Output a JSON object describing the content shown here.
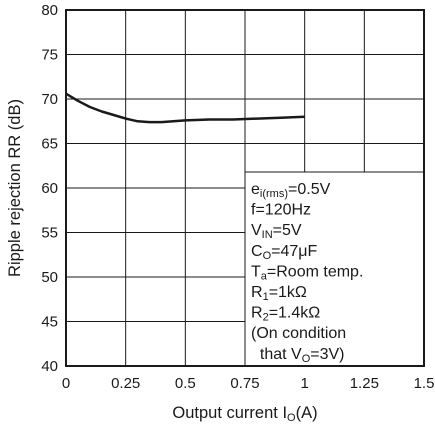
{
  "chart_data": {
    "type": "line",
    "xlabel": {
      "main": "Output current I",
      "sub": "O",
      "unit": "(A)"
    },
    "ylabel": "Ripple rejection RR (dB)",
    "xlim": [
      0,
      1.5
    ],
    "ylim": [
      40,
      80
    ],
    "xticks": [
      "0",
      "0.25",
      "0.5",
      "0.75",
      "1",
      "1.25",
      "1.5"
    ],
    "yticks": [
      "40",
      "45",
      "50",
      "55",
      "60",
      "65",
      "70",
      "75",
      "80"
    ],
    "grid": true,
    "series": [
      {
        "x": [
          0,
          0.05,
          0.1,
          0.15,
          0.2,
          0.25,
          0.3,
          0.35,
          0.4,
          0.45,
          0.5,
          0.6,
          0.7,
          0.8,
          0.9,
          1.0
        ],
        "y": [
          70.6,
          69.8,
          69.1,
          68.6,
          68.2,
          67.8,
          67.5,
          67.4,
          67.4,
          67.5,
          67.6,
          67.7,
          67.7,
          67.8,
          67.9,
          68.0
        ]
      }
    ],
    "annotation_box": {
      "position": "bottom-right",
      "lines": [
        {
          "main": "e",
          "sub": "i(rms)",
          "rest": "=0.5V"
        },
        {
          "main": "f=120Hz",
          "sub": "",
          "rest": ""
        },
        {
          "main": "V",
          "sub": "IN",
          "rest": "=5V"
        },
        {
          "main": "C",
          "sub": "O",
          "rest": "=47μF"
        },
        {
          "main": "T",
          "sub": "a",
          "rest": "=Room temp."
        },
        {
          "main": "R",
          "sub": "1",
          "rest": "=1kΩ"
        },
        {
          "main": "R",
          "sub": "2",
          "rest": "=1.4kΩ"
        },
        {
          "main": "(On condition",
          "sub": "",
          "rest": ""
        },
        {
          "main": "  that V",
          "sub": "O",
          "rest": "=3V)"
        }
      ]
    }
  }
}
